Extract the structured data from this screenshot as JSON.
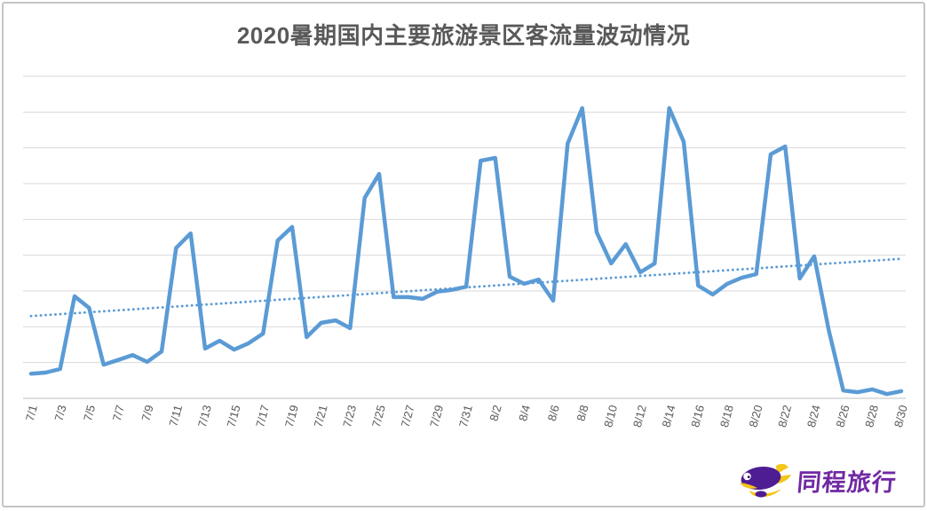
{
  "chart_data": {
    "type": "line",
    "title": "2020暑期国内主要旅游景区客流量波动情况",
    "x": [
      "7/1",
      "7/2",
      "7/3",
      "7/4",
      "7/5",
      "7/6",
      "7/7",
      "7/8",
      "7/9",
      "7/10",
      "7/11",
      "7/12",
      "7/13",
      "7/14",
      "7/15",
      "7/16",
      "7/17",
      "7/18",
      "7/19",
      "7/20",
      "7/21",
      "7/22",
      "7/23",
      "7/24",
      "7/25",
      "7/26",
      "7/27",
      "7/28",
      "7/29",
      "7/30",
      "7/31",
      "8/1",
      "8/2",
      "8/3",
      "8/4",
      "8/5",
      "8/6",
      "8/7",
      "8/8",
      "8/9",
      "8/10",
      "8/11",
      "8/12",
      "8/13",
      "8/14",
      "8/15",
      "8/16",
      "8/17",
      "8/18",
      "8/19",
      "8/20",
      "8/21",
      "8/22",
      "8/23",
      "8/24",
      "8/25",
      "8/26",
      "8/27",
      "8/28",
      "8/29",
      "8/30"
    ],
    "values": [
      0.69,
      0.72,
      0.82,
      2.85,
      2.53,
      0.94,
      1.07,
      1.21,
      1.02,
      1.31,
      4.2,
      4.61,
      1.39,
      1.61,
      1.36,
      1.54,
      1.81,
      4.41,
      4.79,
      1.71,
      2.11,
      2.18,
      1.96,
      5.6,
      6.27,
      2.83,
      2.83,
      2.78,
      2.98,
      3.03,
      3.12,
      6.64,
      6.72,
      3.4,
      3.2,
      3.32,
      2.73,
      7.12,
      8.11,
      4.64,
      3.77,
      4.31,
      3.52,
      3.77,
      8.11,
      7.17,
      3.15,
      2.9,
      3.2,
      3.37,
      3.47,
      6.82,
      7.04,
      3.35,
      3.97,
      1.91,
      0.22,
      0.17,
      0.25,
      0.12,
      0.2
    ],
    "tick_labels": [
      "7/1",
      "7/3",
      "7/5",
      "7/7",
      "7/9",
      "7/11",
      "7/13",
      "7/15",
      "7/17",
      "7/19",
      "7/21",
      "7/23",
      "7/25",
      "7/27",
      "7/29",
      "7/31",
      "8/2",
      "8/4",
      "8/6",
      "8/8",
      "8/10",
      "8/12",
      "8/14",
      "8/16",
      "8/18",
      "8/20",
      "8/22",
      "8/24",
      "8/26",
      "8/28",
      "8/30"
    ],
    "trendline": {
      "style": "dotted",
      "start": 2.3,
      "end": 3.9
    },
    "xlabel": "",
    "ylabel": "",
    "ylim": [
      0,
      9
    ],
    "y_axis_labels_visible": false,
    "gridlines": 10,
    "legend": "none"
  },
  "colors": {
    "series_line": "#5b9bd5",
    "trend_line": "#5b9bd5",
    "grid": "#d9d9d9",
    "axis": "#bfbfbf",
    "title_text": "#595959",
    "tick_text": "#595959",
    "logo_text": "#7129a3",
    "logo_purple": "#4e1d93",
    "logo_yellow": "#f5c518"
  },
  "logo": {
    "text": "同程旅行"
  }
}
